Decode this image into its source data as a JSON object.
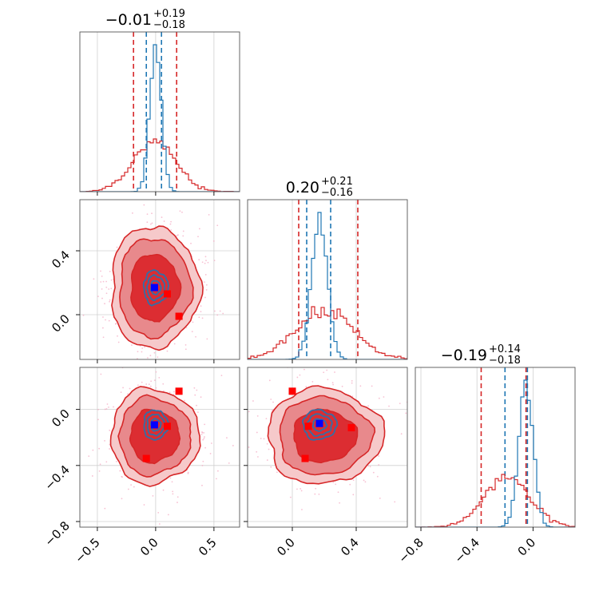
{
  "chart_data": {
    "type": "corner",
    "colors": {
      "red": "#d62728",
      "blue": "#1f77b4",
      "marker_blue": "#0000ff",
      "marker_red": "#ff0000",
      "fill_dark": "#dc2d32",
      "fill_mid": "#e8898c",
      "fill_light": "#f6c9ca",
      "grid": "#d0d0d0"
    },
    "params": [
      {
        "index": 0,
        "range": [
          -0.65,
          0.72
        ],
        "ticks": [
          -0.5,
          0.0,
          0.5
        ],
        "tick_labels": [
          "−0.5",
          "0.0",
          "0.5"
        ]
      },
      {
        "index": 1,
        "range": [
          -0.28,
          0.72
        ],
        "ticks": [
          0.0,
          0.4
        ],
        "tick_labels": [
          "0.0",
          "0.4"
        ]
      },
      {
        "index": 2,
        "range": [
          -0.84,
          0.3
        ],
        "ticks": [
          -0.8,
          -0.4,
          0.0
        ],
        "tick_labels": [
          "−0.8",
          "−0.4",
          "0.0"
        ]
      }
    ],
    "titles": [
      {
        "main": "−0.01",
        "plus": "+0.19",
        "minus": "−0.18"
      },
      {
        "main": "0.20",
        "plus": "+0.21",
        "minus": "−0.16"
      },
      {
        "main": "−0.19",
        "plus": "+0.14",
        "minus": "−0.18"
      }
    ],
    "quantiles_red": [
      [
        -0.19,
        0.18
      ],
      [
        0.04,
        0.41
      ],
      [
        -0.37,
        -0.05
      ]
    ],
    "quantiles_blue": [
      [
        -0.08,
        0.05
      ],
      [
        0.09,
        0.24
      ],
      [
        -0.2,
        -0.04
      ]
    ],
    "hist_red": [
      {
        "mu": -0.01,
        "sigma": 0.18,
        "seed": 11
      },
      {
        "mu": 0.2,
        "sigma": 0.18,
        "seed": 23
      },
      {
        "mu": -0.19,
        "sigma": 0.16,
        "seed": 37
      }
    ],
    "hist_blue": [
      {
        "mu": 0.0,
        "sigma": 0.05,
        "seed": 41
      },
      {
        "mu": 0.17,
        "sigma": 0.05,
        "seed": 53
      },
      {
        "mu": -0.05,
        "sigma": 0.05,
        "seed": 67
      }
    ],
    "panels_2d": [
      {
        "name": "p1-vs-p0",
        "x": 0,
        "y": 1,
        "red_center": [
          -0.01,
          0.17
        ],
        "red_sigma": [
          0.19,
          0.19
        ],
        "blue_center": [
          0.0,
          0.17
        ],
        "blue_sigma": [
          0.05,
          0.05
        ],
        "red_points": [
          [
            0.1,
            0.13
          ],
          [
            0.2,
            -0.01
          ]
        ],
        "blue_points": [
          [
            -0.01,
            0.17
          ]
        ]
      },
      {
        "name": "p2-vs-p0",
        "x": 0,
        "y": 2,
        "red_center": [
          -0.01,
          -0.19
        ],
        "red_sigma": [
          0.19,
          0.17
        ],
        "blue_center": [
          0.0,
          -0.11
        ],
        "blue_sigma": [
          0.05,
          0.05
        ],
        "red_points": [
          [
            0.2,
            0.13
          ],
          [
            0.1,
            -0.12
          ],
          [
            -0.08,
            -0.35
          ]
        ],
        "blue_points": [
          [
            -0.01,
            -0.11
          ]
        ]
      },
      {
        "name": "p2-vs-p1",
        "x": 1,
        "y": 2,
        "red_center": [
          0.2,
          -0.19
        ],
        "red_sigma": [
          0.18,
          0.17
        ],
        "blue_center": [
          0.17,
          -0.11
        ],
        "blue_sigma": [
          0.05,
          0.05
        ],
        "red_points": [
          [
            0.0,
            0.13
          ],
          [
            0.1,
            -0.12
          ],
          [
            0.37,
            -0.13
          ],
          [
            0.08,
            -0.35
          ]
        ],
        "blue_points": [
          [
            0.17,
            -0.1
          ]
        ]
      }
    ]
  }
}
